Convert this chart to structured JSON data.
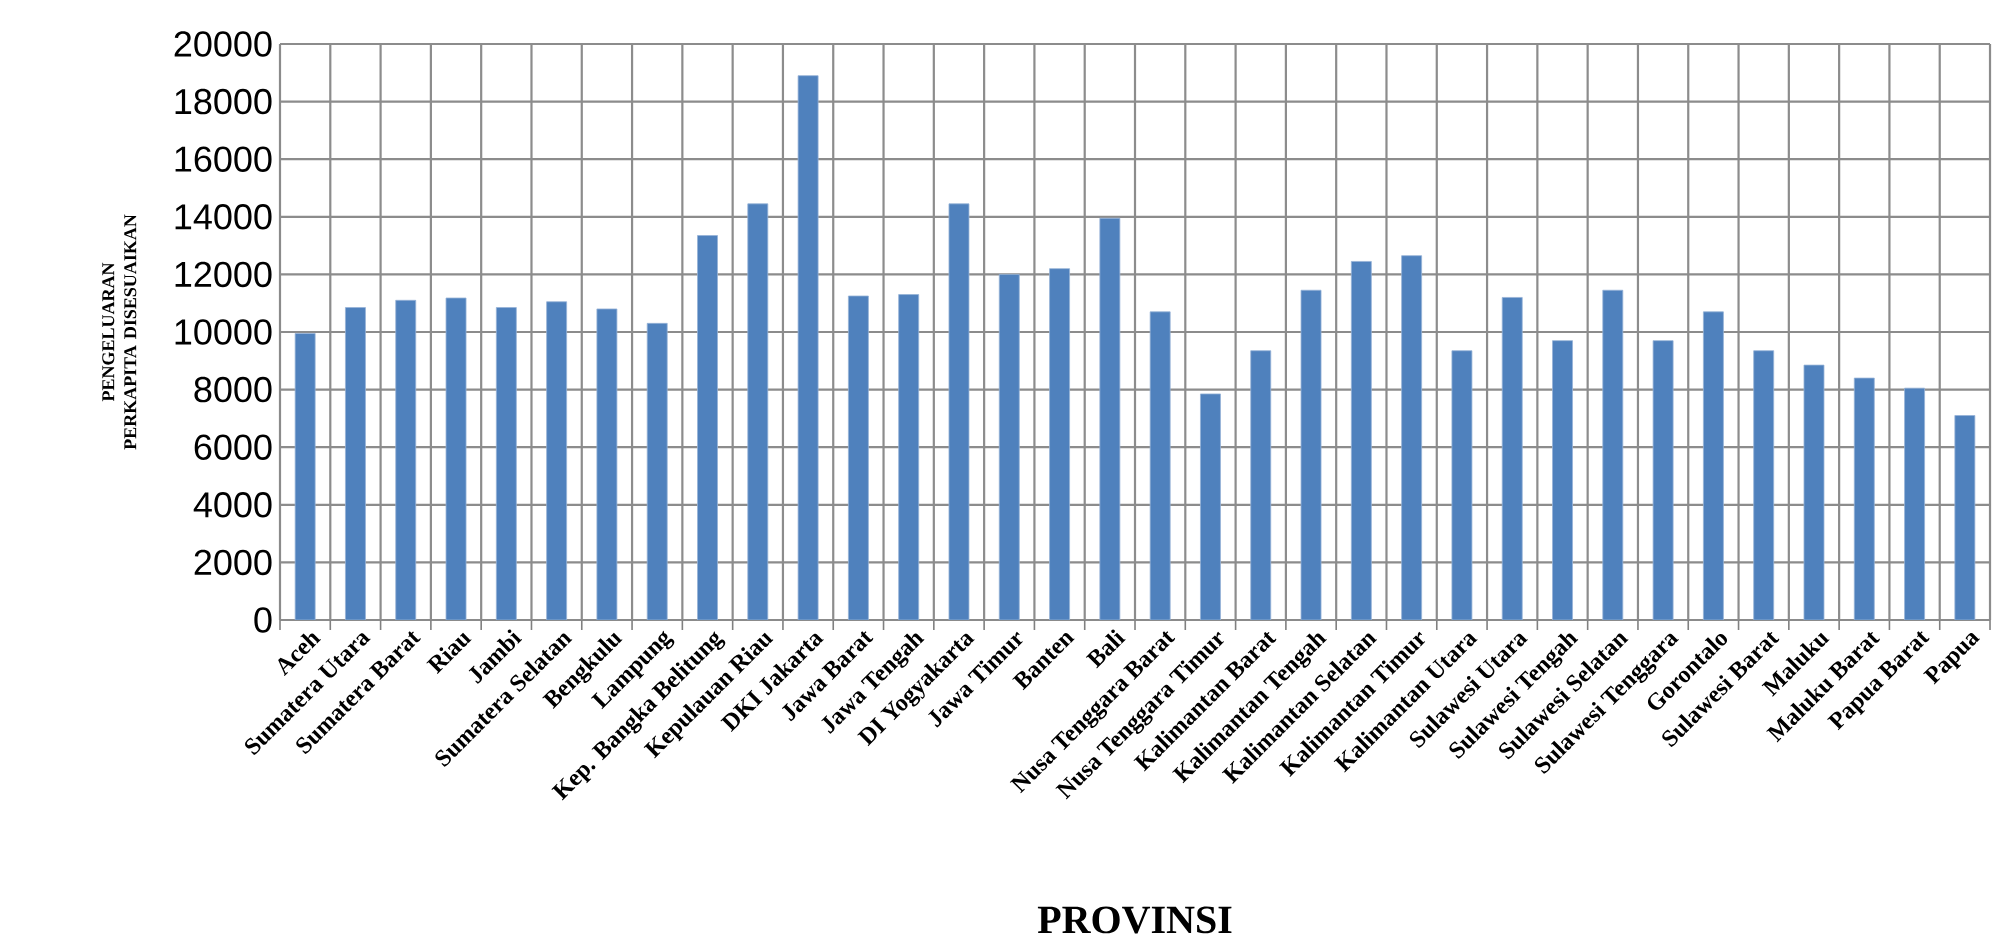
{
  "chart_data": {
    "type": "bar",
    "xlabel": "PROVINSI",
    "ylabel": "PENGELUARAN PERKAPITA DISESUAIKAN",
    "categories": [
      "Aceh",
      "Sumatera Utara",
      "Sumatera Barat",
      "Riau",
      "Jambi",
      "Sumatera Selatan",
      "Bengkulu",
      "Lampung",
      "Kep. Bangka Belitung",
      "Kepulauan Riau",
      "DKI Jakarta",
      "Jawa Barat",
      "Jawa Tengah",
      "DI Yogyakarta",
      "Jawa Timur",
      "Banten",
      "Bali",
      "Nusa Tenggara Barat",
      "Nusa Tenggara Timur",
      "Kalimantan Barat",
      "Kalimantan Tengah",
      "Kalimantan Selatan",
      "Kalimantan Timur",
      "Kalimantan Utara",
      "Sulawesi Utara",
      "Sulawesi Tengah",
      "Sulawesi Selatan",
      "Sulawesi Tenggara",
      "Gorontalo",
      "Sulawesi Barat",
      "Maluku",
      "Maluku Barat",
      "Papua Barat",
      "Papua"
    ],
    "values": [
      9950,
      10850,
      11100,
      11180,
      10850,
      11050,
      10800,
      10300,
      13350,
      14450,
      18900,
      11250,
      11300,
      14450,
      12000,
      12200,
      13950,
      10700,
      7850,
      9350,
      11450,
      12450,
      12650,
      9350,
      11200,
      9700,
      11450,
      9700,
      10700,
      9350,
      8850,
      8400,
      8050,
      7100
    ],
    "color": "#4f81bd",
    "ylim": [
      0,
      20000
    ],
    "yticks": [
      0,
      2000,
      4000,
      6000,
      8000,
      10000,
      12000,
      14000,
      16000,
      18000,
      20000
    ],
    "grid": true
  }
}
